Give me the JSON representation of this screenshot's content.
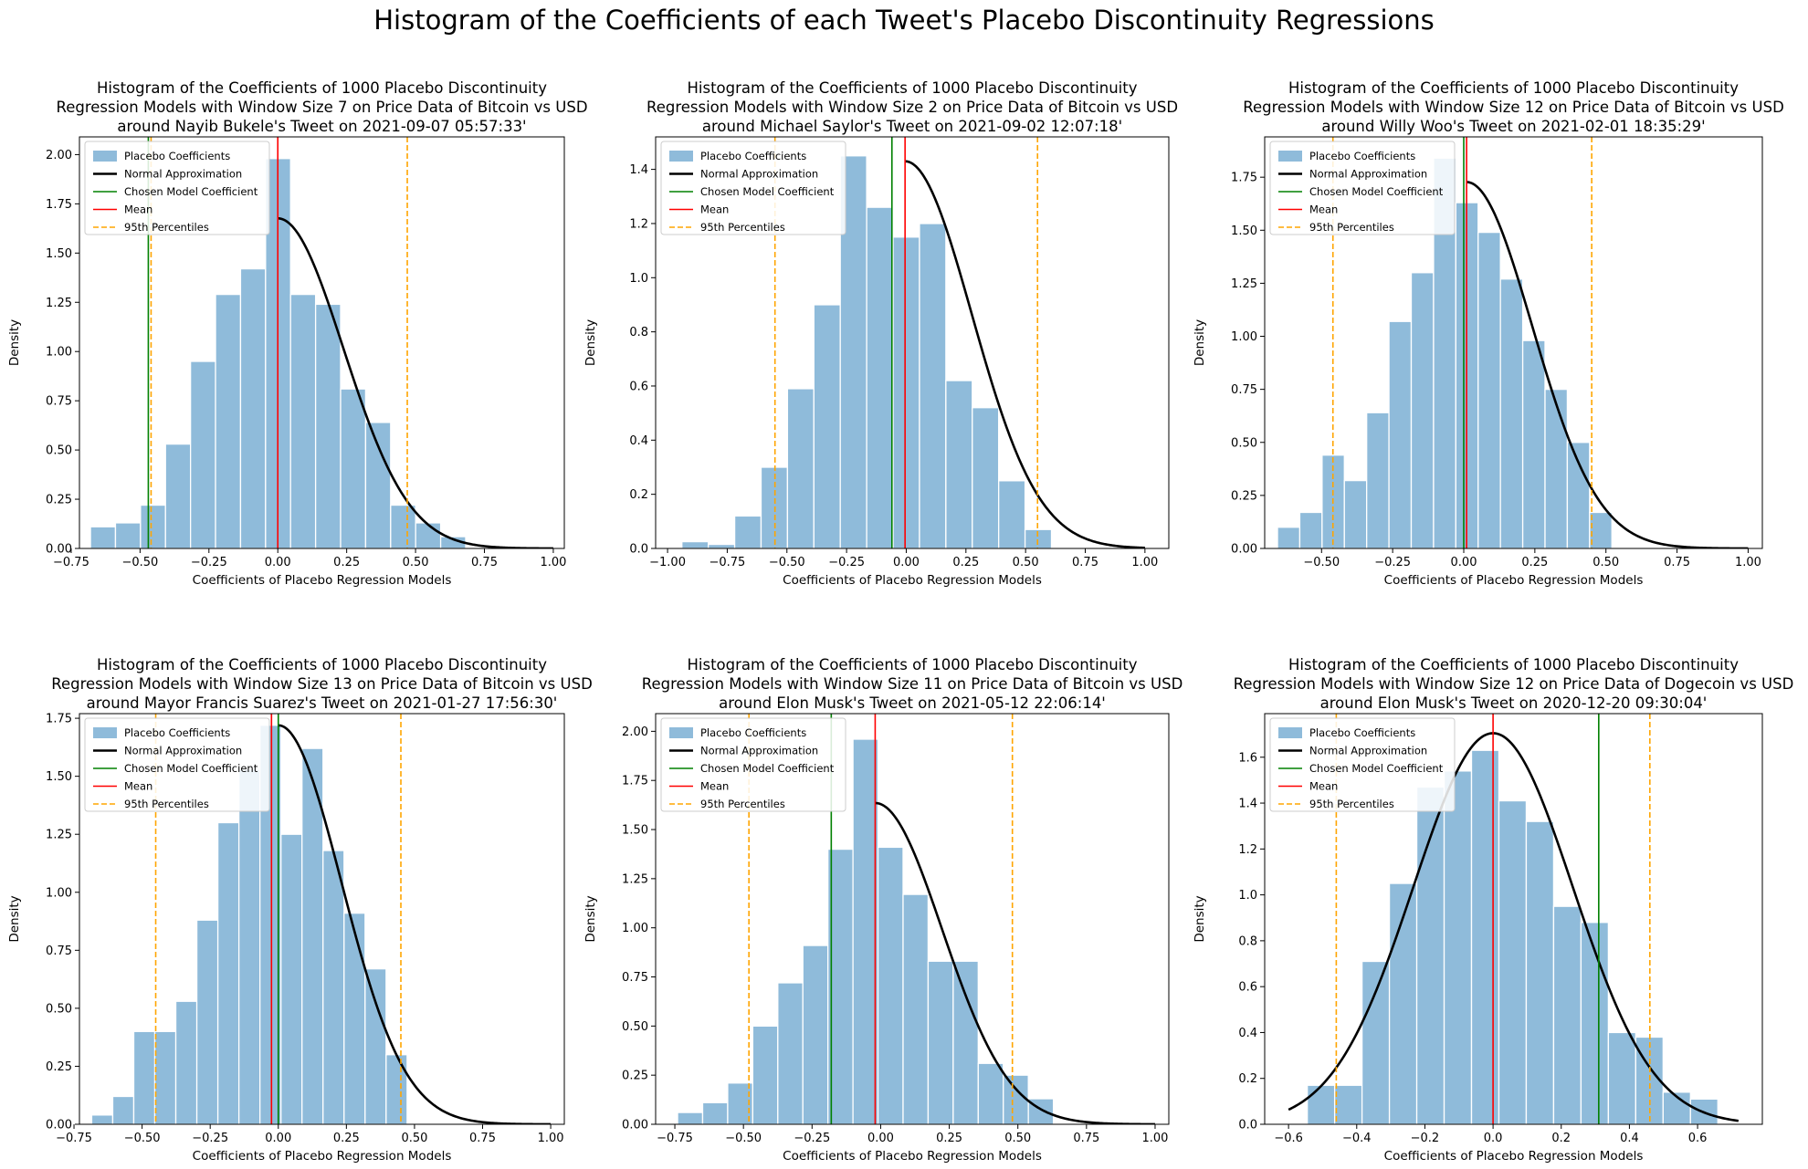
{
  "figure": {
    "suptitle": "Histogram of the Coefficients of each Tweet's Placebo Discontinuity Regressions",
    "legend_location": "upper left",
    "colors": {
      "bars": "#8fbbda",
      "bar_edge": "#ffffff",
      "normal": "#000000",
      "chosen": "#008000",
      "mean": "#ff0000",
      "percentile": "#ffa500"
    }
  },
  "chart_data": [
    {
      "type": "bar",
      "title": [
        "Histogram of the Coefficients of 1000 Placebo Discontinuity",
        "Regression Models with Window Size 7 on Price Data of Bitcoin vs USD",
        "around Nayib Bukele's Tweet on 2021-09-07 05:57:33'"
      ],
      "xlabel": "Coefficients of Placebo Regression Models",
      "ylabel": "Density",
      "xlim": [
        -0.72,
        1.04
      ],
      "ylim": [
        0,
        2.09
      ],
      "xticks": [
        -0.75,
        -0.5,
        -0.25,
        0.0,
        0.25,
        0.5,
        0.75,
        1.0
      ],
      "xtick_labels": [
        "−0.75",
        "−0.50",
        "−0.25",
        "0.00",
        "0.25",
        "0.50",
        "0.75",
        "1.00"
      ],
      "yticks": [
        0,
        0.25,
        0.5,
        0.75,
        1.0,
        1.25,
        1.5,
        1.75,
        2.0
      ],
      "ytick_labels": [
        "0.00",
        "0.25",
        "0.50",
        "0.75",
        "1.00",
        "1.25",
        "1.50",
        "1.75",
        "2.00"
      ],
      "legend": [
        "Placebo Coefficients",
        "Normal Approximation",
        "Chosen Model Coefficient",
        "Mean",
        "95th Percentiles"
      ],
      "bins": {
        "start": -0.68,
        "width": 0.0908,
        "values": [
          0.11,
          0.13,
          0.22,
          0.53,
          0.95,
          1.29,
          1.42,
          1.98,
          1.29,
          1.24,
          0.81,
          0.64,
          0.22,
          0.13,
          0.06
        ]
      },
      "normal": {
        "mean": 0.0,
        "sd": 0.238,
        "from": 0.0,
        "to": 1.0
      },
      "mean": 0.0,
      "chosen": -0.47,
      "percentiles": [
        -0.46,
        0.47
      ]
    },
    {
      "type": "bar",
      "title": [
        "Histogram of the Coefficients of 1000 Placebo Discontinuity",
        "Regression Models with Window Size 2 on Price Data of Bitcoin vs USD",
        "around Michael Saylor's Tweet on 2021-09-02 12:07:18'"
      ],
      "xlabel": "Coefficients of Placebo Regression Models",
      "ylabel": "Density",
      "xlim": [
        -1.05,
        1.1
      ],
      "ylim": [
        0,
        1.52
      ],
      "xticks": [
        -1.0,
        -0.75,
        -0.5,
        -0.25,
        0.0,
        0.25,
        0.5,
        0.75,
        1.0
      ],
      "xtick_labels": [
        "−1.00",
        "−0.75",
        "−0.50",
        "−0.25",
        "0.00",
        "0.25",
        "0.50",
        "0.75",
        "1.00"
      ],
      "yticks": [
        0,
        0.2,
        0.4,
        0.6,
        0.8,
        1.0,
        1.2,
        1.4
      ],
      "ytick_labels": [
        "0.0",
        "0.2",
        "0.4",
        "0.6",
        "0.8",
        "1.0",
        "1.2",
        "1.4"
      ],
      "legend": [
        "Placebo Coefficients",
        "Normal Approximation",
        "Chosen Model Coefficient",
        "Mean",
        "95th Percentiles"
      ],
      "bins": {
        "start": -0.94,
        "width": 0.1106,
        "values": [
          0.025,
          0.015,
          0.12,
          0.3,
          0.59,
          0.9,
          1.45,
          1.26,
          1.15,
          1.2,
          0.62,
          0.52,
          0.25,
          0.07
        ]
      },
      "normal": {
        "mean": -0.005,
        "sd": 0.279,
        "from": -0.005,
        "to": 1.0
      },
      "mean": -0.005,
      "chosen": -0.06,
      "percentiles": [
        -0.55,
        0.55
      ]
    },
    {
      "type": "bar",
      "title": [
        "Histogram of the Coefficients of 1000 Placebo Discontinuity",
        "Regression Models with Window Size 12 on Price Data of Bitcoin vs USD",
        "around Willy Woo's Tweet on 2021-02-01 18:35:29'"
      ],
      "xlabel": "Coefficients of Placebo Regression Models",
      "ylabel": "Density",
      "xlim": [
        -0.7,
        1.05
      ],
      "ylim": [
        0,
        1.94
      ],
      "xticks": [
        -0.5,
        -0.25,
        0.0,
        0.25,
        0.5,
        0.75,
        1.0
      ],
      "xtick_labels": [
        "−0.50",
        "−0.25",
        "0.00",
        "0.25",
        "0.50",
        "0.75",
        "1.00"
      ],
      "yticks": [
        0,
        0.25,
        0.5,
        0.75,
        1.0,
        1.25,
        1.5,
        1.75
      ],
      "ytick_labels": [
        "0.00",
        "0.25",
        "0.50",
        "0.75",
        "1.00",
        "1.25",
        "1.50",
        "1.75"
      ],
      "legend": [
        "Placebo Coefficients",
        "Normal Approximation",
        "Chosen Model Coefficient",
        "Mean",
        "95th Percentiles"
      ],
      "bins": {
        "start": -0.655,
        "width": 0.0784,
        "values": [
          0.1,
          0.17,
          0.44,
          0.32,
          0.64,
          1.07,
          1.3,
          1.84,
          1.63,
          1.49,
          1.27,
          0.98,
          0.75,
          0.5,
          0.17
        ]
      },
      "normal": {
        "mean": 0.01,
        "sd": 0.231,
        "from": 0.01,
        "to": 1.0
      },
      "mean": 0.01,
      "chosen": 0.0,
      "percentiles": [
        -0.46,
        0.45
      ]
    },
    {
      "type": "bar",
      "title": [
        "Histogram of the Coefficients of 1000 Placebo Discontinuity",
        "Regression Models with Window Size 13 on Price Data of Bitcoin vs USD",
        "around Mayor Francis Suarez's Tweet on 2021-01-27 17:56:30'"
      ],
      "xlabel": "Coefficients of Placebo Regression Models",
      "ylabel": "Density",
      "xlim": [
        -0.73,
        1.05
      ],
      "ylim": [
        0,
        1.77
      ],
      "xticks": [
        -0.75,
        -0.5,
        -0.25,
        0.0,
        0.25,
        0.5,
        0.75,
        1.0
      ],
      "xtick_labels": [
        "−0.75",
        "−0.50",
        "−0.25",
        "0.00",
        "0.25",
        "0.50",
        "0.75",
        "1.00"
      ],
      "yticks": [
        0,
        0.25,
        0.5,
        0.75,
        1.0,
        1.25,
        1.5,
        1.75
      ],
      "ytick_labels": [
        "0.00",
        "0.25",
        "0.50",
        "0.75",
        "1.00",
        "1.25",
        "1.50",
        "1.75"
      ],
      "legend": [
        "Placebo Coefficients",
        "Normal Approximation",
        "Chosen Model Coefficient",
        "Mean",
        "95th Percentiles"
      ],
      "bins": {
        "start": -0.685,
        "width": 0.0772,
        "values": [
          0.04,
          0.12,
          0.4,
          0.4,
          0.53,
          0.88,
          1.3,
          1.53,
          1.72,
          1.25,
          1.62,
          1.18,
          0.91,
          0.67,
          0.3
        ]
      },
      "normal": {
        "mean": 0.0,
        "sd": 0.232,
        "from": 0.0,
        "to": 1.0
      },
      "mean": -0.025,
      "chosen": 0.0,
      "percentiles": [
        -0.45,
        0.45
      ]
    },
    {
      "type": "bar",
      "title": [
        "Histogram of the Coefficients of 1000 Placebo Discontinuity",
        "Regression Models with Window Size 11 on Price Data of Bitcoin vs USD",
        "around Elon Musk's Tweet on 2021-05-12 22:06:14'"
      ],
      "xlabel": "Coefficients of Placebo Regression Models",
      "ylabel": "Density",
      "xlim": [
        -0.82,
        1.05
      ],
      "ylim": [
        0,
        2.09
      ],
      "xticks": [
        -0.75,
        -0.5,
        -0.25,
        0.0,
        0.25,
        0.5,
        0.75,
        1.0
      ],
      "xtick_labels": [
        "−0.75",
        "−0.50",
        "−0.25",
        "0.00",
        "0.25",
        "0.50",
        "0.75",
        "1.00"
      ],
      "yticks": [
        0,
        0.25,
        0.5,
        0.75,
        1.0,
        1.25,
        1.5,
        1.75,
        2.0
      ],
      "ytick_labels": [
        "0.00",
        "0.25",
        "0.50",
        "0.75",
        "1.00",
        "1.25",
        "1.50",
        "1.75",
        "2.00"
      ],
      "legend": [
        "Placebo Coefficients",
        "Normal Approximation",
        "Chosen Model Coefficient",
        "Mean",
        "95th Percentiles"
      ],
      "bins": {
        "start": -0.74,
        "width": 0.0913,
        "values": [
          0.06,
          0.11,
          0.21,
          0.5,
          0.72,
          0.91,
          1.4,
          1.96,
          1.41,
          1.17,
          0.83,
          0.83,
          0.31,
          0.25,
          0.13
        ]
      },
      "normal": {
        "mean": -0.02,
        "sd": 0.244,
        "from": -0.02,
        "to": 1.0
      },
      "mean": -0.02,
      "chosen": -0.18,
      "percentiles": [
        -0.48,
        0.48
      ]
    },
    {
      "type": "bar",
      "title": [
        "Histogram of the Coefficients of 1000 Placebo Discontinuity",
        "Regression Models with Window Size 12 on Price Data of Dogecoin vs USD",
        "around Elon Musk's Tweet on 2020-12-20 09:30:04'"
      ],
      "xlabel": "Coefficients of Placebo Regression Models",
      "ylabel": "Density",
      "xlim": [
        -0.67,
        0.79
      ],
      "ylim": [
        0,
        1.79
      ],
      "xticks": [
        -0.6,
        -0.4,
        -0.2,
        0.0,
        0.2,
        0.4,
        0.6
      ],
      "xtick_labels": [
        "−0.6",
        "−0.4",
        "−0.2",
        "0.0",
        "0.2",
        "0.4",
        "0.6"
      ],
      "yticks": [
        0,
        0.2,
        0.4,
        0.6,
        0.8,
        1.0,
        1.2,
        1.4,
        1.6
      ],
      "ytick_labels": [
        "0.0",
        "0.2",
        "0.4",
        "0.6",
        "0.8",
        "1.0",
        "1.2",
        "1.4",
        "1.6"
      ],
      "legend": [
        "Placebo Coefficients",
        "Normal Approximation",
        "Chosen Model Coefficient",
        "Mean",
        "95th Percentiles"
      ],
      "bins": {
        "start": -0.545,
        "width": 0.0803,
        "values": [
          0.17,
          0.17,
          0.71,
          1.05,
          1.47,
          1.54,
          1.63,
          1.41,
          1.32,
          0.95,
          0.88,
          0.4,
          0.38,
          0.14,
          0.11
        ]
      },
      "normal": {
        "mean": 0.0,
        "sd": 0.234,
        "from": -0.6,
        "to": 0.72
      },
      "mean": 0.0,
      "chosen": 0.31,
      "percentiles": [
        -0.46,
        0.46
      ]
    }
  ]
}
